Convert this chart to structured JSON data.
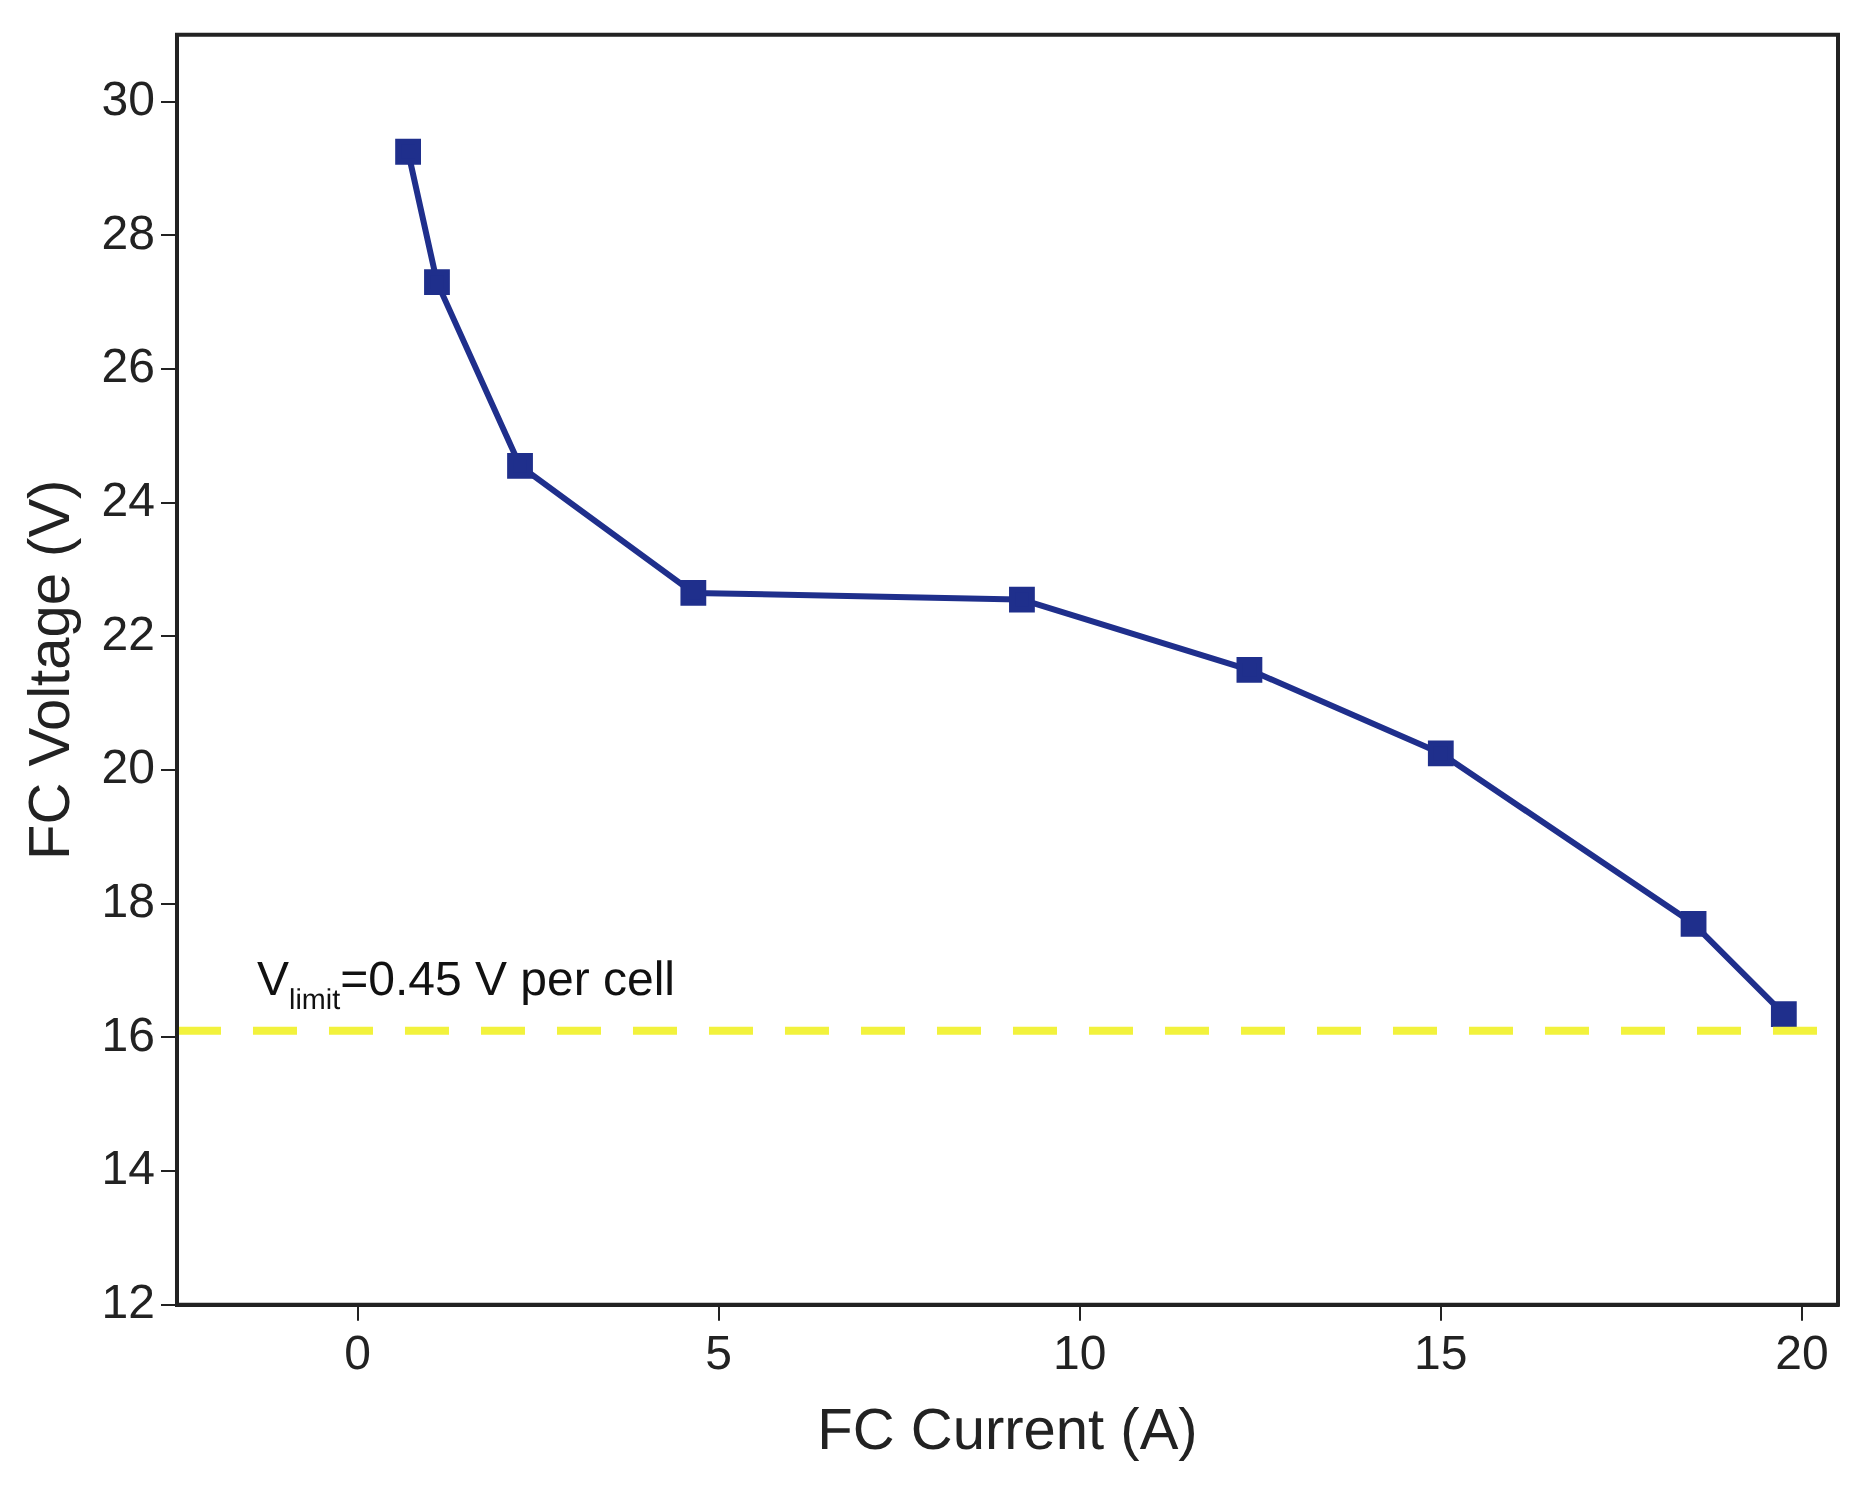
{
  "chart_data": {
    "type": "line",
    "xlabel": "FC Current (A)",
    "ylabel": "FC Voltage (V)",
    "x": [
      0.7,
      1.1,
      2.25,
      4.65,
      9.2,
      12.35,
      15.0,
      18.5,
      19.75
    ],
    "series": [
      {
        "color": "#1f2f8c",
        "values": [
          29.25,
          27.3,
          24.55,
          22.65,
          22.55,
          21.5,
          20.25,
          17.7,
          16.35
        ]
      }
    ],
    "xlim": [
      -2.5,
      20.5
    ],
    "xticks": [
      0,
      5,
      10,
      15,
      20
    ],
    "ylim": [
      12,
      31
    ],
    "yticks": [
      12,
      14,
      16,
      18,
      20,
      22,
      24,
      26,
      28,
      30
    ],
    "ref_lines": [
      {
        "axis": "y",
        "value": 16.1,
        "color": "#f2f23c",
        "line_style": "dashed"
      }
    ],
    "annotations": [
      "V$_{limit}$=0.45 V per cell"
    ],
    "marker": "square",
    "line_style": "solid",
    "grid": false,
    "legend": false
  }
}
